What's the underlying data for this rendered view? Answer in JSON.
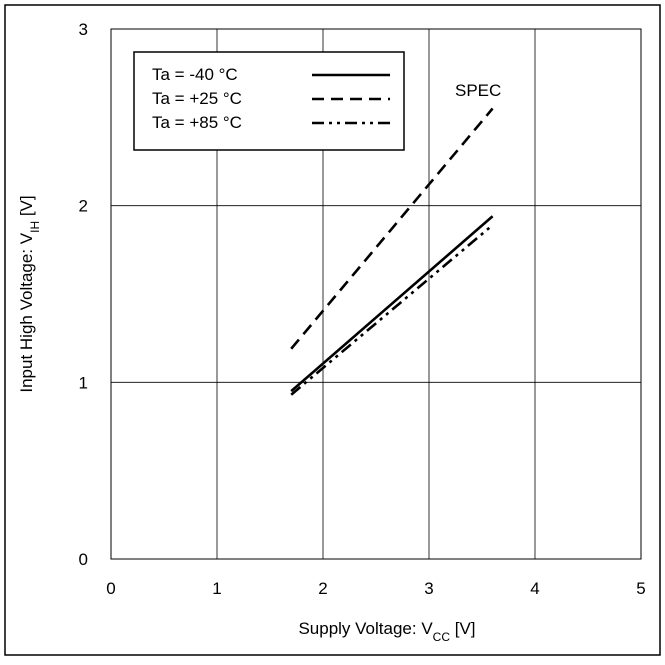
{
  "chart_data": {
    "type": "line",
    "xlabel": {
      "main": "Supply Voltage: V",
      "sub": "CC",
      "unit": " [V]"
    },
    "ylabel": {
      "main": "Input High Voltage: V",
      "sub": "IH",
      "unit": " [V]"
    },
    "xlim": [
      0,
      5
    ],
    "ylim": [
      0,
      3
    ],
    "xticks": [
      "0",
      "1",
      "2",
      "3",
      "4",
      "5"
    ],
    "yticks": [
      "0",
      "1",
      "2",
      "3"
    ],
    "grid": true,
    "legend_position": "top-left",
    "annotation": "SPEC",
    "series": [
      {
        "name": "Ta = -40 °C",
        "style": "solid",
        "x": [
          1.7,
          3.6
        ],
        "y": [
          0.95,
          1.94
        ]
      },
      {
        "name": "Ta = +25 °C",
        "style": "dashed",
        "x": [
          1.7,
          3.6
        ],
        "y": [
          1.19,
          2.55
        ]
      },
      {
        "name": "Ta = +85 °C",
        "style": "dashdotdot",
        "x": [
          1.7,
          3.6
        ],
        "y": [
          0.93,
          1.89
        ]
      }
    ]
  }
}
